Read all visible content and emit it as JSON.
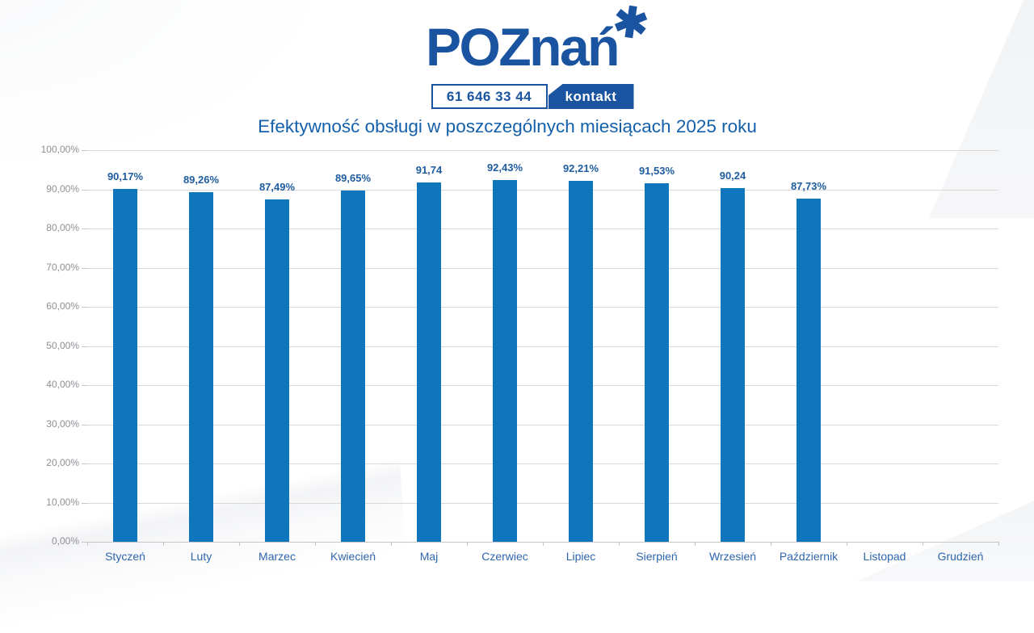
{
  "logo": {
    "text": "POZnań",
    "star": "✱",
    "phone": "61 646 33 44",
    "contact_label": "kontakt"
  },
  "colors": {
    "bar": "#0f75bc",
    "logo_blue": "#1a53a0",
    "title_blue": "#1560aa",
    "data_label": "#1f5c9e",
    "month_label": "#2e66ad",
    "axis_gray": "#8f8f96",
    "grid": "#d9d9d9"
  },
  "chart_data": {
    "type": "bar",
    "title": "Efektywność obsługi w poszczególnych miesiącach 2025 roku",
    "categories": [
      "Styczeń",
      "Luty",
      "Marzec",
      "Kwiecień",
      "Maj",
      "Czerwiec",
      "Lipiec",
      "Sierpień",
      "Wrzesień",
      "Październik",
      "Listopad",
      "Grudzień"
    ],
    "values": [
      90.17,
      89.26,
      87.49,
      89.65,
      91.74,
      92.43,
      92.21,
      91.53,
      90.24,
      87.73,
      null,
      null
    ],
    "data_labels": [
      "90,17%",
      "89,26%",
      "87,49%",
      "89,65%",
      "91,74",
      "92,43%",
      "92,21%",
      "91,53%",
      "90,24",
      "87,73%",
      "",
      ""
    ],
    "xlabel": "",
    "ylabel": "",
    "ylim": [
      0,
      100
    ],
    "ytick_step": 10,
    "ytick_labels": [
      "0,00%",
      "10,00%",
      "20,00%",
      "30,00%",
      "40,00%",
      "50,00%",
      "60,00%",
      "70,00%",
      "80,00%",
      "90,00%",
      "100,00%"
    ],
    "grid": true,
    "legend": false
  }
}
